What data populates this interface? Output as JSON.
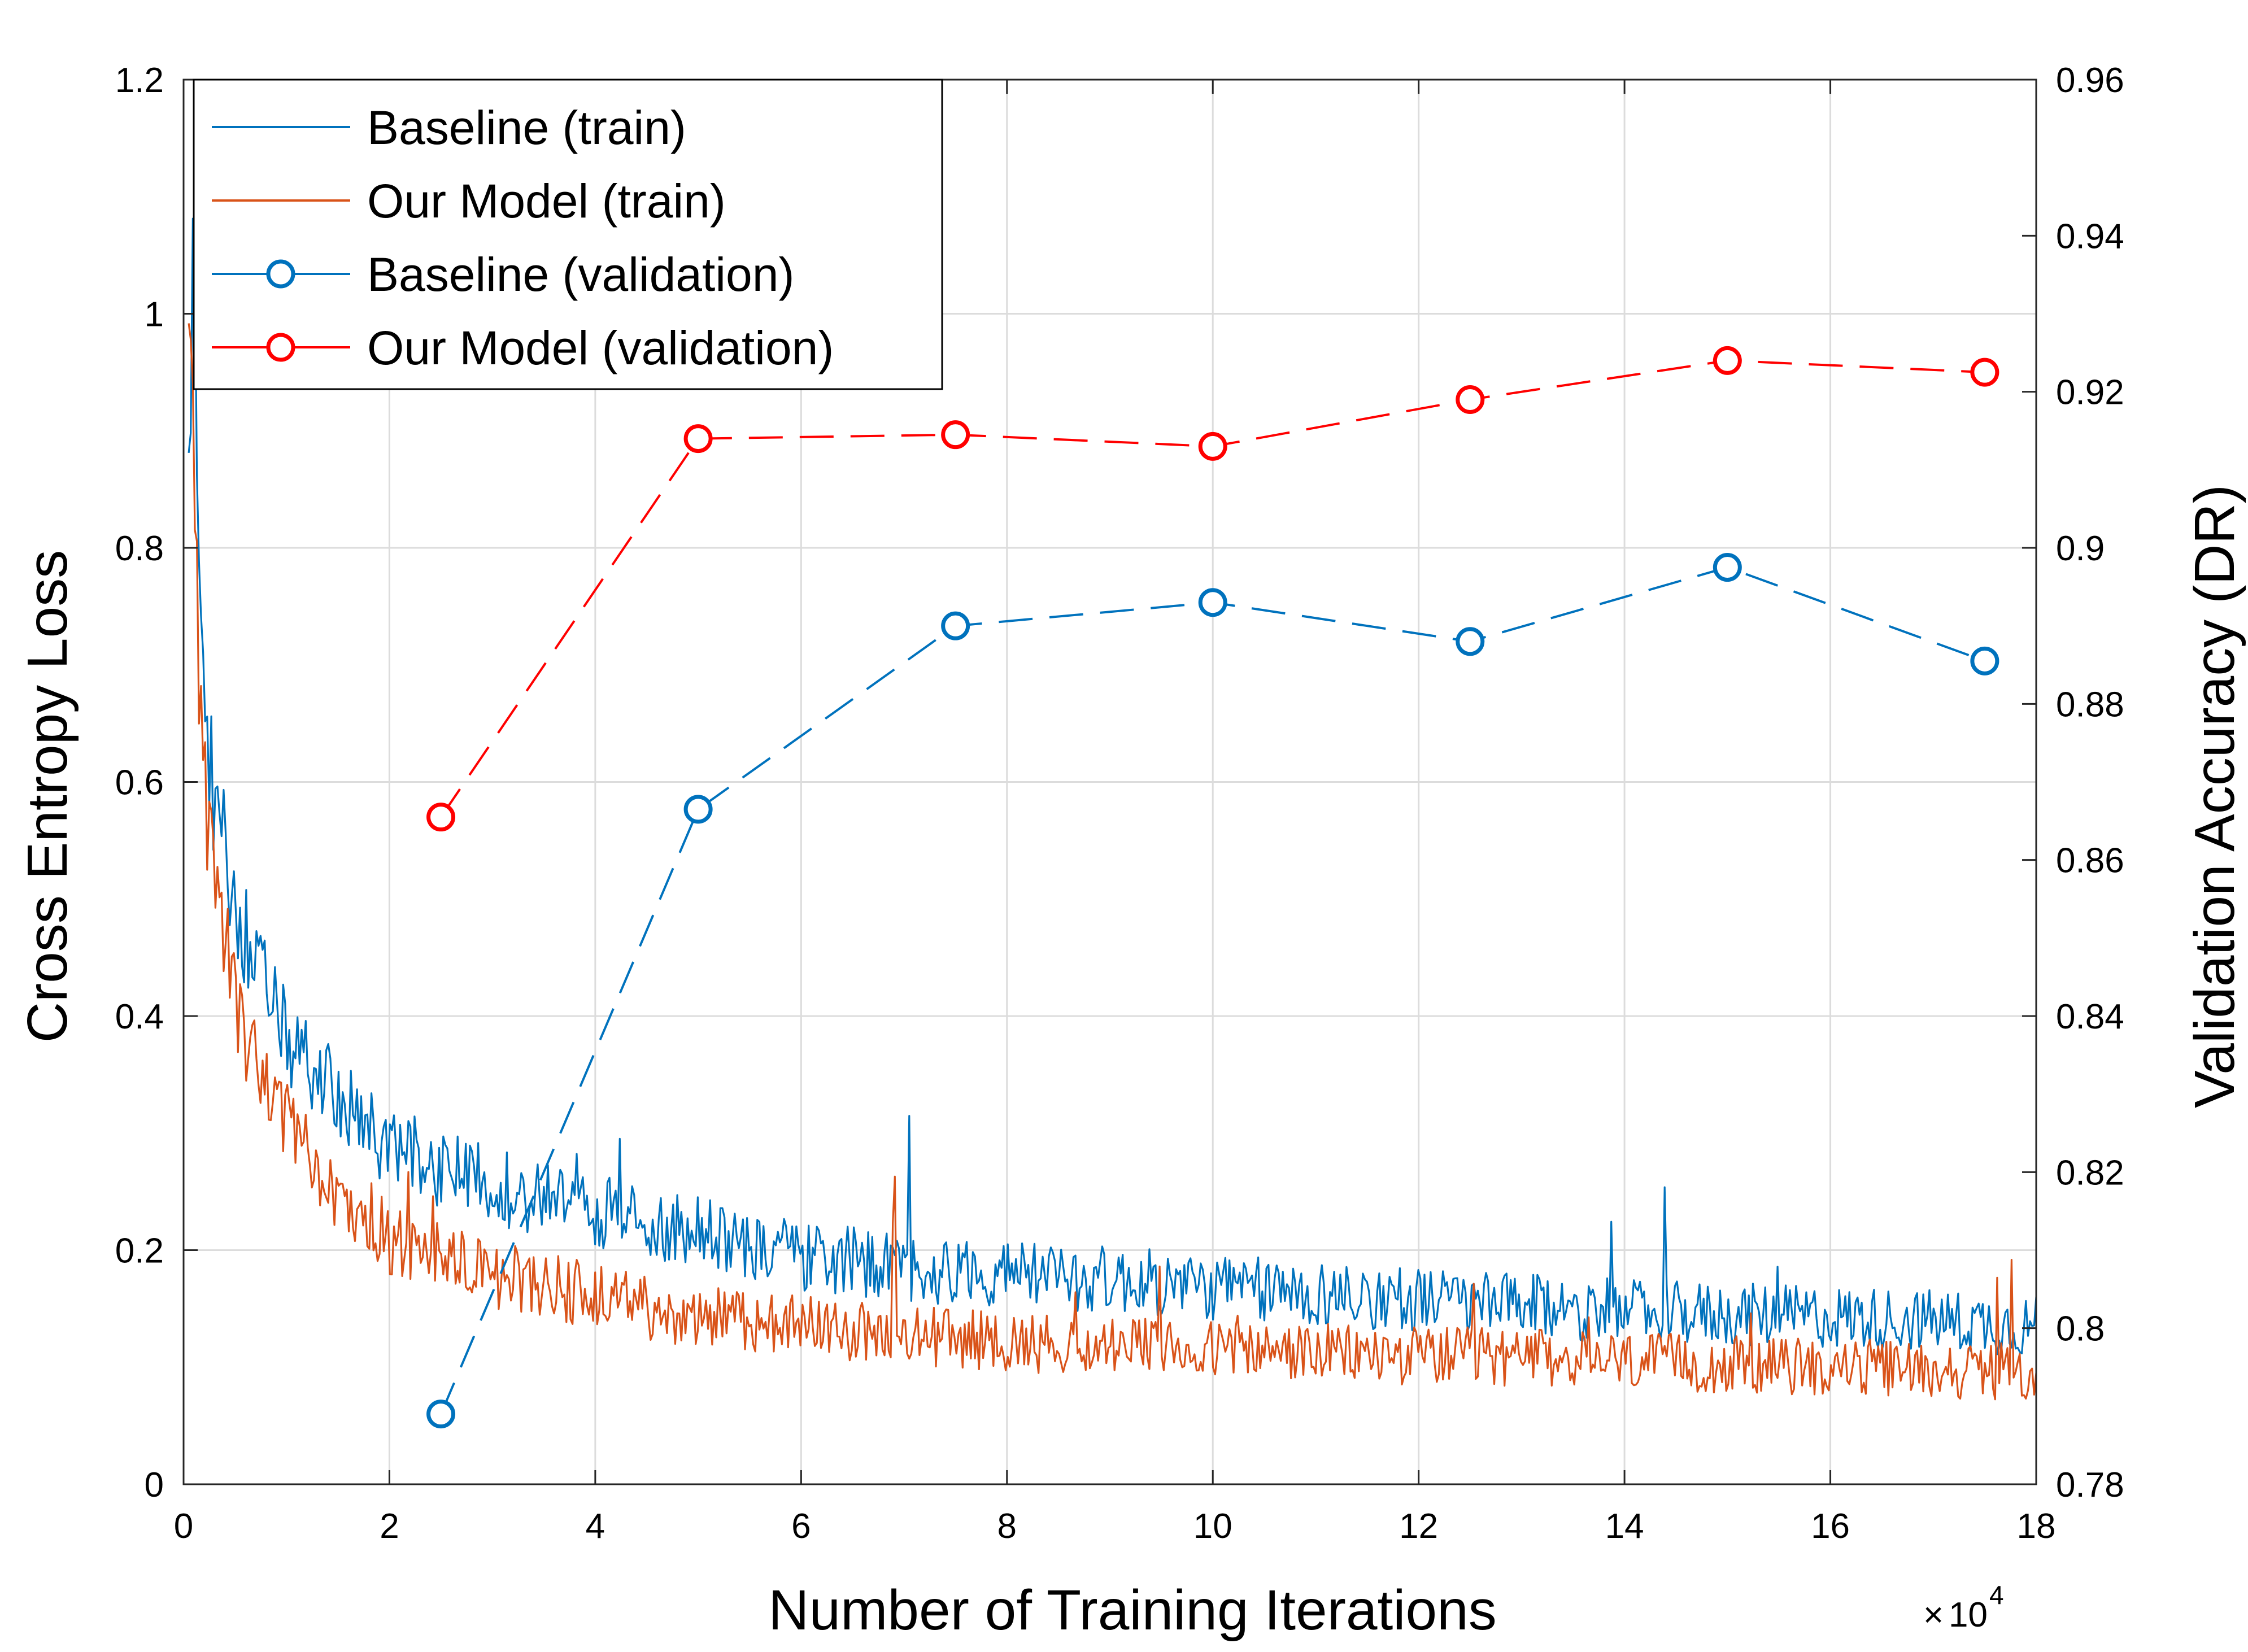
{
  "chart_data": {
    "type": "line",
    "title": "",
    "xlabel": "Number of Training Iterations",
    "ylabel_left": "Cross Entropy Loss",
    "ylabel_right": "Validation Accuracy (DR)",
    "x_multiplier_base": "10",
    "x_multiplier_exp": "4",
    "xlim": [
      0,
      18
    ],
    "ylim_left": [
      0,
      1.2
    ],
    "ylim_right": [
      0.78,
      0.96
    ],
    "xticks": [
      0,
      2,
      4,
      6,
      8,
      10,
      12,
      14,
      16,
      18
    ],
    "xtick_labels": [
      "0",
      "2",
      "4",
      "6",
      "8",
      "10",
      "12",
      "14",
      "16",
      "18"
    ],
    "yticks_left": [
      0,
      0.2,
      0.4,
      0.6,
      0.8,
      1,
      1.2
    ],
    "ytick_labels_left": [
      "0",
      "0.2",
      "0.4",
      "0.6",
      "0.8",
      "1",
      "1.2"
    ],
    "yticks_right": [
      0.78,
      0.8,
      0.82,
      0.84,
      0.86,
      0.88,
      0.9,
      0.92,
      0.94,
      0.96
    ],
    "ytick_labels_right": [
      "0.78",
      "0.8",
      "0.82",
      "0.84",
      "0.86",
      "0.88",
      "0.9",
      "0.92",
      "0.94",
      "0.96"
    ],
    "grid": true,
    "legend_position": "top-left",
    "colors": {
      "baseline_train": "#0072BD",
      "ours_train": "#D95319",
      "baseline_val": "#0072BD",
      "ours_val": "#FF0000"
    },
    "series": [
      {
        "name": "Baseline (train)",
        "axis": "left",
        "style": "solid",
        "x": [
          0.05,
          0.1,
          0.15,
          0.2,
          0.25,
          0.3,
          0.4,
          0.5,
          0.6,
          0.8,
          1.0,
          1.2,
          1.5,
          1.8,
          2.0,
          2.5,
          3.0,
          3.5,
          4.0,
          4.5,
          5.0,
          5.5,
          6.0,
          7.0,
          8.0,
          9.0,
          10.0,
          11.0,
          12.0,
          13.0,
          14.0,
          15.0,
          16.0,
          17.0,
          18.0
        ],
        "y": [
          0.85,
          1.07,
          0.82,
          0.65,
          0.62,
          0.58,
          0.54,
          0.5,
          0.47,
          0.42,
          0.38,
          0.36,
          0.33,
          0.3,
          0.29,
          0.27,
          0.255,
          0.245,
          0.235,
          0.225,
          0.215,
          0.205,
          0.195,
          0.185,
          0.18,
          0.175,
          0.168,
          0.163,
          0.158,
          0.152,
          0.148,
          0.145,
          0.143,
          0.14,
          0.135
        ]
      },
      {
        "name": "Our Model (train)",
        "axis": "left",
        "style": "solid",
        "x": [
          0.05,
          0.1,
          0.15,
          0.2,
          0.25,
          0.3,
          0.4,
          0.5,
          0.6,
          0.8,
          1.0,
          1.2,
          1.5,
          1.8,
          2.0,
          2.5,
          3.0,
          3.5,
          4.0,
          4.5,
          5.0,
          5.5,
          6.0,
          7.0,
          8.0,
          9.0,
          10.0,
          11.0,
          12.0,
          13.0,
          14.0,
          15.0,
          16.0,
          17.0,
          18.0
        ],
        "y": [
          0.98,
          0.85,
          0.7,
          0.6,
          0.55,
          0.52,
          0.46,
          0.42,
          0.38,
          0.34,
          0.31,
          0.28,
          0.25,
          0.23,
          0.21,
          0.195,
          0.18,
          0.17,
          0.16,
          0.15,
          0.145,
          0.14,
          0.135,
          0.128,
          0.122,
          0.118,
          0.115,
          0.112,
          0.11,
          0.108,
          0.105,
          0.102,
          0.1,
          0.098,
          0.095
        ]
      },
      {
        "name": "Baseline (validation)",
        "axis": "right",
        "style": "dashed-marker",
        "x": [
          2.5,
          5,
          7.5,
          10,
          12.5,
          15,
          17.5
        ],
        "y": [
          0.789,
          0.8665,
          0.89,
          0.893,
          0.888,
          0.8975,
          0.8855
        ]
      },
      {
        "name": "Our Model (validation)",
        "axis": "right",
        "style": "dashed-marker",
        "x": [
          2.5,
          5,
          7.5,
          10,
          12.5,
          15,
          17.5
        ],
        "y": [
          0.8655,
          0.914,
          0.9145,
          0.913,
          0.919,
          0.924,
          0.9225
        ]
      }
    ]
  }
}
